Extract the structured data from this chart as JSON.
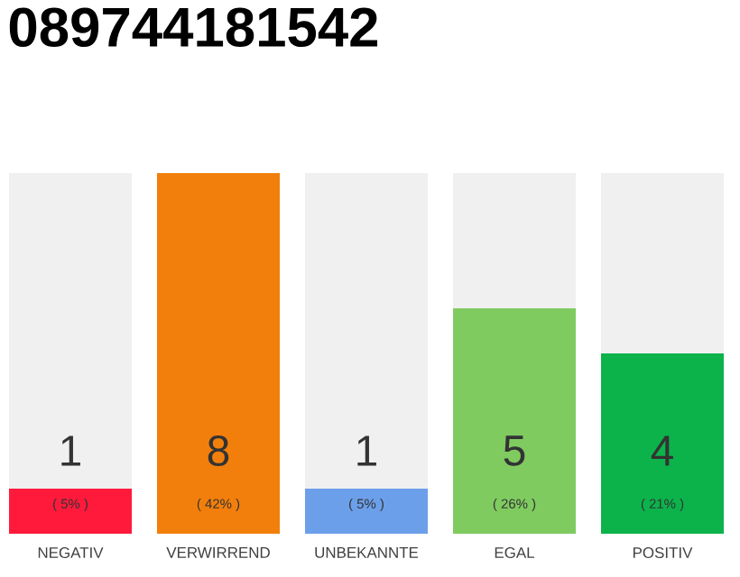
{
  "chart_data": {
    "type": "bar",
    "title": "089744181542",
    "categories": [
      "NEGATIV",
      "VERWIRREND",
      "UNBEKANNTE",
      "EGAL",
      "POSITIV"
    ],
    "stacked": true,
    "series": [
      {
        "colors": [
          "#ff1a3c",
          "#f27f0c",
          "#6c9fea",
          "#7fcb60",
          "#0cb34b"
        ],
        "values": [
          1,
          8,
          1,
          5,
          4
        ],
        "value_labels": [
          "1",
          "8",
          "1",
          "5",
          "4"
        ]
      },
      {
        "color": "#f0f0f0",
        "values": [
          7,
          0,
          7,
          3,
          4
        ]
      }
    ],
    "annotations": [
      "( 5% )",
      "( 42% )",
      "( 5% )",
      "( 26% )",
      "( 21% )"
    ],
    "tick_labels": "x"
  }
}
